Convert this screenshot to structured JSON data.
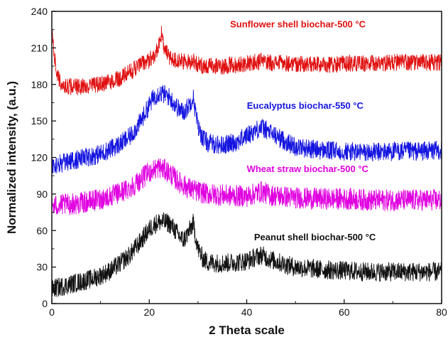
{
  "chart_data": {
    "type": "line",
    "xlabel": "2 Theta scale",
    "ylabel": "Normalized intensity, (a.u.)",
    "xlim": [
      0,
      80
    ],
    "ylim": [
      0,
      240
    ],
    "xticks": [
      0,
      20,
      40,
      60,
      80
    ],
    "yticks": [
      0,
      30,
      60,
      90,
      120,
      150,
      180,
      210,
      240
    ],
    "x_tick_labels": [
      "0",
      "20",
      "40",
      "60",
      "80"
    ],
    "y_tick_labels": [
      "0",
      "30",
      "60",
      "90",
      "120",
      "150",
      "180",
      "210",
      "240"
    ],
    "grid": false,
    "legend_placement": "inline",
    "series": [
      {
        "name": "Sunflower shell biochar-500 °C",
        "color": "#e01010",
        "x": [
          0,
          0.5,
          1,
          1.5,
          2,
          3,
          5,
          8,
          10,
          12,
          14,
          16,
          18,
          20,
          21,
          22,
          22.5,
          23,
          24,
          26,
          28,
          29,
          30,
          32,
          35,
          40,
          43,
          45,
          50,
          55,
          60,
          65,
          70,
          75,
          80
        ],
        "y": [
          222,
          205,
          190,
          183,
          180,
          178,
          178,
          179,
          180,
          182,
          185,
          190,
          196,
          200,
          204,
          212,
          222,
          210,
          203,
          199,
          198,
          200,
          196,
          195,
          195,
          197,
          199,
          198,
          197,
          196,
          197,
          197,
          198,
          198,
          198
        ],
        "noise": 7
      },
      {
        "name": "Eucalyptus biochar-550 °C",
        "color": "#1515e0",
        "x": [
          0,
          2,
          5,
          8,
          10,
          12,
          14,
          16,
          18,
          20,
          21,
          22,
          23,
          24,
          25,
          26,
          27,
          28,
          29,
          30,
          31,
          32,
          35,
          38,
          40,
          43,
          45,
          48,
          50,
          55,
          60,
          65,
          70,
          75,
          80
        ],
        "y": [
          113,
          115,
          118,
          121,
          123,
          127,
          131,
          137,
          148,
          163,
          170,
          173,
          172,
          170,
          165,
          160,
          157,
          162,
          170,
          145,
          136,
          132,
          130,
          133,
          138,
          145,
          140,
          133,
          129,
          126,
          125,
          124,
          125,
          125,
          126
        ],
        "noise": 8
      },
      {
        "name": "Wheat straw biochar-500 °C",
        "color": "#e000e0",
        "x": [
          0,
          2,
          5,
          8,
          10,
          12,
          14,
          16,
          18,
          20,
          22,
          24,
          26,
          28,
          30,
          32,
          35,
          40,
          43,
          45,
          50,
          55,
          60,
          65,
          70,
          75,
          80
        ],
        "y": [
          80,
          81,
          82,
          84,
          86,
          88,
          91,
          95,
          101,
          108,
          112,
          108,
          100,
          95,
          92,
          90,
          89,
          88,
          92,
          89,
          87,
          86,
          86,
          85,
          85,
          85,
          85
        ],
        "noise": 9
      },
      {
        "name": "Peanut shell biochar-500 °C",
        "color": "#111111",
        "x": [
          0,
          2,
          5,
          8,
          10,
          12,
          14,
          16,
          18,
          20,
          21,
          22,
          23,
          24,
          25,
          26,
          27,
          28,
          29,
          30,
          31,
          32,
          35,
          38,
          40,
          43,
          45,
          48,
          50,
          55,
          60,
          65,
          70,
          75,
          80
        ],
        "y": [
          12,
          14,
          17,
          20,
          23,
          27,
          33,
          40,
          50,
          61,
          65,
          67,
          67,
          66,
          62,
          56,
          52,
          58,
          66,
          45,
          37,
          34,
          33,
          34,
          35,
          40,
          36,
          32,
          30,
          28,
          27,
          26,
          26,
          26,
          26
        ],
        "noise": 8
      }
    ],
    "annotations": [
      {
        "text": "Sunflower shell biochar-500 °C",
        "series": 0,
        "x": 50.5,
        "y": 227
      },
      {
        "text": "Eucalyptus biochar-550 °C",
        "series": 1,
        "x": 52,
        "y": 160
      },
      {
        "text": "Wheat straw biochar-500 °C",
        "series": 2,
        "x": 52.5,
        "y": 108
      },
      {
        "text": "Peanut shell biochar-500 °C",
        "series": 3,
        "x": 54,
        "y": 52
      }
    ]
  }
}
